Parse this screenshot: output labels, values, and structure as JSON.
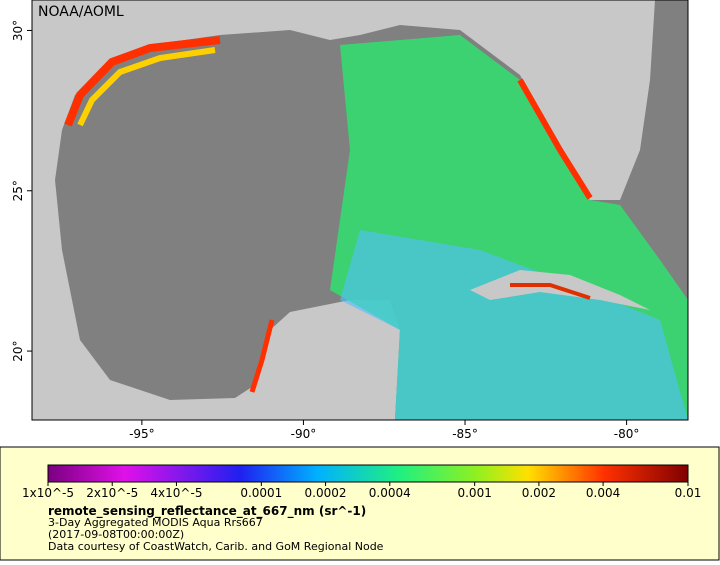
{
  "credit": "NOAA/AOML",
  "map": {
    "xlim": [
      -98.4,
      -78.1
    ],
    "ylim": [
      17.85,
      30.95
    ],
    "xticks": [
      {
        "value": -95,
        "label": "-95°"
      },
      {
        "value": -90,
        "label": "-90°"
      },
      {
        "value": -85,
        "label": "-85°"
      },
      {
        "value": -80,
        "label": "-80°"
      }
    ],
    "yticks": [
      {
        "value": 20,
        "label": "20°"
      },
      {
        "value": 25,
        "label": "25°"
      },
      {
        "value": 30,
        "label": "30°"
      }
    ]
  },
  "legend": {
    "colorbar": {
      "scale": "log",
      "lim": [
        1e-05,
        0.01
      ],
      "ticks": [
        {
          "value": 1e-05,
          "label": "1x10^-5"
        },
        {
          "value": 2e-05,
          "label": "2x10^-5"
        },
        {
          "value": 4e-05,
          "label": "4x10^-5"
        },
        0.0001,
        0.0002,
        0.0004,
        0.001,
        0.002,
        0.004,
        0.01
      ]
    },
    "title": "remote_sensing_reflectance_at_667_nm (sr^-1)",
    "lines": [
      "3-Day Aggregated MODIS Aqua Rrs667",
      "(2017-09-08T00:00:00Z)",
      "Data courtesy of CoastWatch, Carib. and GoM Regional Node"
    ]
  }
}
